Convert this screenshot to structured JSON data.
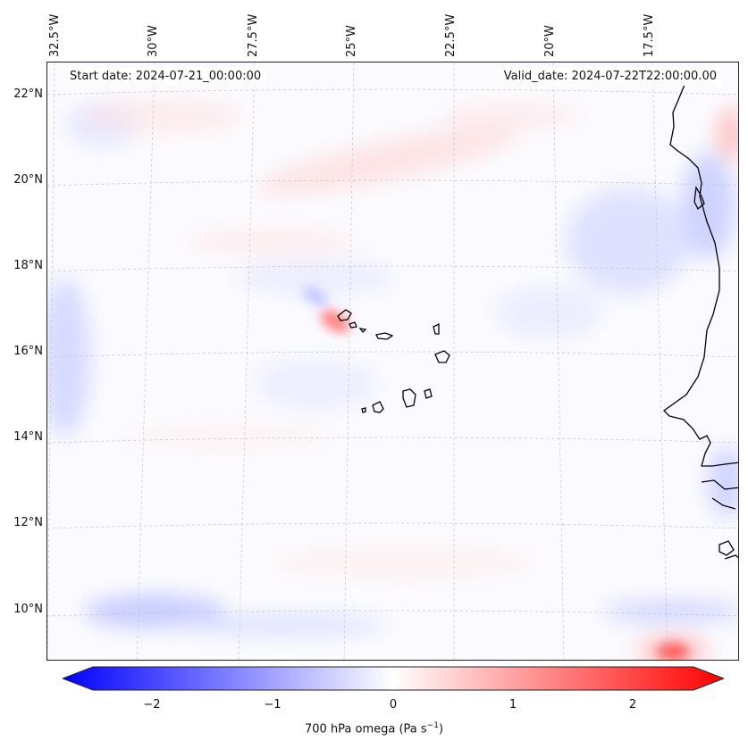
{
  "header": {
    "start_date": "Start date: 2024-07-21_00:00:00",
    "valid_date": "Valid_date: 2024-07-22T22:00:00.00"
  },
  "longitude_labels": [
    "32.5°W",
    "30°W",
    "27.5°W",
    "25°W",
    "22.5°W",
    "20°W",
    "17.5°W"
  ],
  "latitude_labels": [
    "22°N",
    "20°N",
    "18°N",
    "16°N",
    "14°N",
    "12°N",
    "10°N"
  ],
  "colorbar": {
    "ticks": [
      "−2",
      "−1",
      "0",
      "1",
      "2"
    ],
    "label": "700 hPa omega (Pa s",
    "label_exp": "−1",
    "label_close": ")",
    "range": [
      -2.7,
      2.7
    ],
    "colormap": "bwr",
    "low_color": "#0000ff",
    "mid_color": "#ffffff",
    "high_color": "#ff0000"
  },
  "map": {
    "region": "Eastern tropical Atlantic, Cape Verde islands, West African coast",
    "coastline_color": "#000000",
    "gridline_color": "#bbbbbb"
  }
}
